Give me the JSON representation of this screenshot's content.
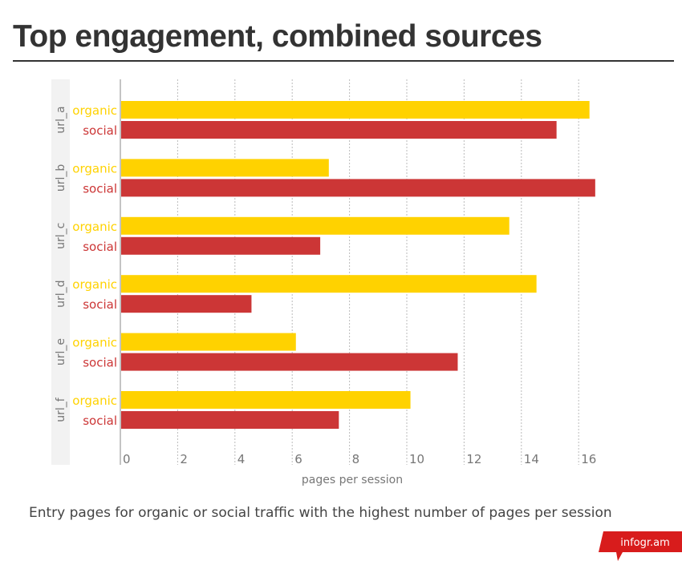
{
  "title": "Top engagement, combined sources",
  "caption": "Entry pages for organic or social traffic with the highest number of pages per session",
  "logo": "infogr.am",
  "colors": {
    "organic": "#ffd200",
    "social": "#cc3636"
  },
  "chart_data": {
    "type": "bar",
    "orientation": "horizontal",
    "title": "Top engagement, combined sources",
    "xlabel": "pages per session",
    "ylabel": "",
    "xlim": [
      0,
      17
    ],
    "xticks": [
      0,
      2,
      4,
      6,
      8,
      10,
      12,
      14,
      16
    ],
    "grid": true,
    "categories": [
      "url_a",
      "url_b",
      "url_c",
      "url_d",
      "url_e",
      "url_f"
    ],
    "series": [
      {
        "name": "organic",
        "values": [
          16.35,
          7.25,
          13.55,
          14.5,
          6.1,
          10.1
        ]
      },
      {
        "name": "social",
        "values": [
          15.2,
          16.55,
          6.95,
          4.55,
          11.75,
          7.6
        ]
      }
    ]
  }
}
